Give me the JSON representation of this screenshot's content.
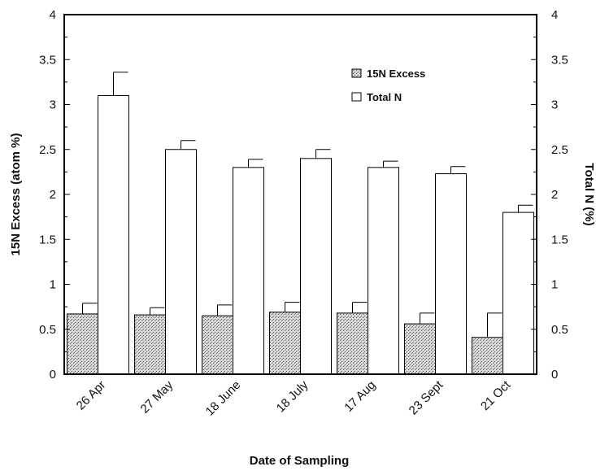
{
  "chart_data": {
    "type": "bar",
    "categories": [
      "26 Apr",
      "27 May",
      "18 June",
      "18  July",
      "17 Aug",
      "23 Sept",
      "21 Oct"
    ],
    "series": [
      {
        "name": "15N Excess",
        "values": [
          0.67,
          0.66,
          0.65,
          0.69,
          0.68,
          0.56,
          0.41
        ],
        "errors": [
          0.12,
          0.08,
          0.12,
          0.11,
          0.12,
          0.12,
          0.27
        ],
        "axis": "left",
        "pattern": "stipple"
      },
      {
        "name": "Total N",
        "values": [
          3.1,
          2.5,
          2.3,
          2.4,
          2.3,
          2.23,
          1.8
        ],
        "errors": [
          0.26,
          0.1,
          0.09,
          0.1,
          0.07,
          0.08,
          0.08
        ],
        "axis": "right",
        "pattern": "open"
      }
    ],
    "xlabel": "Date of Sampling",
    "ylabel": "15N Excess (atom %)",
    "ylabel_right": "Total N (%)",
    "ylim": [
      0,
      4
    ],
    "ylim_right": [
      0,
      4
    ],
    "yticks": [
      "0",
      "0.5",
      "1",
      "1.5",
      "2",
      "2.5",
      "3",
      "3.5",
      "4"
    ],
    "yticks_right": [
      "0",
      "0.5",
      "1",
      "1.5",
      "2",
      "2.5",
      "3",
      "3.5",
      "4"
    ],
    "grid": false,
    "legend_position": "top-right"
  }
}
